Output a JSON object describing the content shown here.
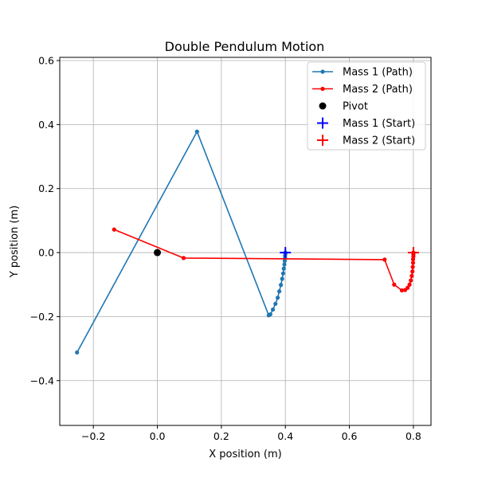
{
  "chart_data": {
    "type": "line",
    "title": "Double Pendulum Motion",
    "xlabel": "X position (m)",
    "ylabel": "Y position (m)",
    "xlim": [
      -0.305,
      0.855
    ],
    "ylim": [
      -0.54,
      0.61
    ],
    "x_ticks": [
      -0.2,
      0.0,
      0.2,
      0.4,
      0.6,
      0.8
    ],
    "x_tick_labels": [
      "−0.2",
      "0.0",
      "0.2",
      "0.4",
      "0.6",
      "0.8"
    ],
    "y_ticks": [
      -0.4,
      -0.2,
      0.0,
      0.2,
      0.4,
      0.6
    ],
    "y_tick_labels": [
      "−0.4",
      "−0.2",
      "0.0",
      "0.2",
      "0.4",
      "0.6"
    ],
    "grid": true,
    "legend_placement": "upper-right",
    "series": [
      {
        "name": "Mass 1 (Path)",
        "kind": "line-marker",
        "color": "#1f77b4",
        "points": [
          [
            0.4,
            0.0
          ],
          [
            0.4,
            -0.004
          ],
          [
            0.399,
            -0.01
          ],
          [
            0.399,
            -0.017
          ],
          [
            0.398,
            -0.026
          ],
          [
            0.397,
            -0.037
          ],
          [
            0.395,
            -0.05
          ],
          [
            0.393,
            -0.065
          ],
          [
            0.39,
            -0.082
          ],
          [
            0.386,
            -0.101
          ],
          [
            0.381,
            -0.121
          ],
          [
            0.376,
            -0.141
          ],
          [
            0.369,
            -0.16
          ],
          [
            0.361,
            -0.178
          ],
          [
            0.353,
            -0.193
          ],
          [
            0.348,
            -0.196
          ],
          [
            0.124,
            0.378
          ],
          [
            -0.251,
            -0.312
          ]
        ]
      },
      {
        "name": "Mass 2 (Path)",
        "kind": "line-marker",
        "color": "#ff0000",
        "points": [
          [
            0.8,
            0.0
          ],
          [
            0.8,
            -0.005
          ],
          [
            0.8,
            -0.012
          ],
          [
            0.799,
            -0.021
          ],
          [
            0.799,
            -0.032
          ],
          [
            0.798,
            -0.045
          ],
          [
            0.797,
            -0.059
          ],
          [
            0.795,
            -0.073
          ],
          [
            0.792,
            -0.087
          ],
          [
            0.788,
            -0.1
          ],
          [
            0.782,
            -0.11
          ],
          [
            0.774,
            -0.117
          ],
          [
            0.764,
            -0.118
          ],
          [
            0.74,
            -0.1
          ],
          [
            0.71,
            -0.022
          ],
          [
            0.082,
            -0.017
          ],
          [
            -0.135,
            0.072
          ]
        ]
      },
      {
        "name": "Pivot",
        "kind": "dot",
        "color": "#000000",
        "points": [
          [
            0.0,
            0.0
          ]
        ]
      },
      {
        "name": "Mass 1 (Start)",
        "kind": "plus",
        "color": "#0000ff",
        "points": [
          [
            0.4,
            0.0
          ]
        ]
      },
      {
        "name": "Mass 2 (Start)",
        "kind": "plus",
        "color": "#ff0000",
        "points": [
          [
            0.8,
            0.0
          ]
        ]
      }
    ]
  }
}
